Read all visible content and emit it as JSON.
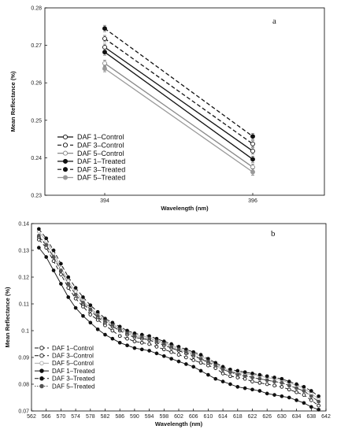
{
  "chart_data": [
    {
      "type": "line",
      "panel_label": "a",
      "xlabel": "Wavelength (nm)",
      "ylabel": "Mean Reflectance (%)",
      "x": [
        394,
        396
      ],
      "x_tick_labels": [
        "394",
        "396"
      ],
      "ylim": [
        0.23,
        0.28
      ],
      "y_tick_labels": [
        "0.23",
        "0.24",
        "0.25",
        "0.26",
        "0.27",
        "0.28"
      ],
      "grid": false,
      "legend_position": "bottom-left",
      "error_bars": true,
      "series": [
        {
          "name": "DAF 1–Control",
          "values": [
            0.2695,
            0.2418
          ],
          "line_color": "#111111",
          "line_style": "solid",
          "marker": "open-circle"
        },
        {
          "name": "DAF 3–Control",
          "values": [
            0.2718,
            0.2437
          ],
          "line_color": "#111111",
          "line_style": "dashed",
          "marker": "open-circle"
        },
        {
          "name": "DAF 5–Control",
          "values": [
            0.2652,
            0.2375
          ],
          "line_color": "#888888",
          "line_style": "solid",
          "marker": "open-circle"
        },
        {
          "name": "DAF 1–Treated",
          "values": [
            0.2682,
            0.2396
          ],
          "line_color": "#111111",
          "line_style": "solid",
          "marker": "filled-circle"
        },
        {
          "name": "DAF 3–Treated",
          "values": [
            0.2745,
            0.2457
          ],
          "line_color": "#111111",
          "line_style": "dashed",
          "marker": "filled-circle"
        },
        {
          "name": "DAF 5–Treated",
          "values": [
            0.2638,
            0.2362
          ],
          "line_color": "#999999",
          "line_style": "solid",
          "marker": "filled-circle"
        }
      ]
    },
    {
      "type": "line",
      "panel_label": "b",
      "xlabel": "Wavelength (nm)",
      "ylabel": "Mean Reflectance (%)",
      "xlim": [
        562,
        642
      ],
      "ylim": [
        0.07,
        0.14
      ],
      "x_tick_labels": [
        "562",
        "566",
        "570",
        "574",
        "578",
        "582",
        "586",
        "590",
        "594",
        "598",
        "602",
        "606",
        "610",
        "614",
        "618",
        "622",
        "626",
        "630",
        "634",
        "638",
        "642"
      ],
      "y_tick_labels": [
        "0.07",
        "0.08",
        "0.09",
        "0.1",
        "0.11",
        "0.12",
        "0.13",
        "0.14"
      ],
      "grid": false,
      "legend_position": "bottom-left",
      "x": [
        564,
        566,
        568,
        570,
        572,
        574,
        576,
        578,
        580,
        582,
        584,
        586,
        588,
        590,
        592,
        594,
        596,
        598,
        600,
        602,
        604,
        606,
        608,
        610,
        612,
        614,
        616,
        618,
        620,
        622,
        624,
        626,
        628,
        630,
        632,
        634,
        636,
        638,
        640
      ],
      "series": [
        {
          "name": "DAF 1–Control",
          "line_color": "#111111",
          "line_style": "dashed",
          "marker": "open-circle",
          "values": [
            0.134,
            0.131,
            0.126,
            0.121,
            0.116,
            0.112,
            0.109,
            0.106,
            0.104,
            0.102,
            0.1,
            0.098,
            0.097,
            0.096,
            0.0955,
            0.095,
            0.094,
            0.093,
            0.092,
            0.091,
            0.09,
            0.089,
            0.088,
            0.087,
            0.086,
            0.084,
            0.083,
            0.0825,
            0.082,
            0.081,
            0.0805,
            0.08,
            0.0795,
            0.079,
            0.078,
            0.077,
            0.076,
            0.074,
            0.072
          ]
        },
        {
          "name": "DAF 3–Control",
          "line_color": "#111111",
          "line_style": "dashed",
          "marker": "open-circle",
          "values": [
            0.135,
            0.132,
            0.1275,
            0.1225,
            0.1175,
            0.1135,
            0.11,
            0.1075,
            0.105,
            0.103,
            0.1015,
            0.1,
            0.0985,
            0.0975,
            0.097,
            0.0965,
            0.0955,
            0.0945,
            0.0935,
            0.0925,
            0.0915,
            0.0905,
            0.0895,
            0.088,
            0.087,
            0.0855,
            0.0845,
            0.084,
            0.0835,
            0.0825,
            0.082,
            0.0815,
            0.081,
            0.0805,
            0.0795,
            0.0785,
            0.0775,
            0.0755,
            0.0735
          ]
        },
        {
          "name": "DAF 5–Control",
          "line_color": "#aaaaaa",
          "line_style": "solid",
          "marker": "open-circle",
          "values": [
            0.137,
            0.1335,
            0.129,
            0.1235,
            0.1185,
            0.1145,
            0.111,
            0.1085,
            0.106,
            0.104,
            0.1025,
            0.101,
            0.0995,
            0.0985,
            0.098,
            0.0975,
            0.0965,
            0.0955,
            0.0945,
            0.0935,
            0.0925,
            0.0915,
            0.0905,
            0.089,
            0.0875,
            0.086,
            0.085,
            0.0845,
            0.084,
            0.0835,
            0.083,
            0.0825,
            0.082,
            0.0815,
            0.0805,
            0.0795,
            0.0785,
            0.0765,
            0.0745
          ]
        },
        {
          "name": "DAF 1–Treated",
          "line_color": "#111111",
          "line_style": "solid",
          "marker": "filled-circle",
          "values": [
            0.131,
            0.1275,
            0.1225,
            0.1175,
            0.1125,
            0.1085,
            0.1055,
            0.103,
            0.1005,
            0.0985,
            0.097,
            0.0955,
            0.0945,
            0.0935,
            0.093,
            0.0925,
            0.0915,
            0.0905,
            0.0895,
            0.0885,
            0.0875,
            0.0865,
            0.085,
            0.0835,
            0.082,
            0.081,
            0.08,
            0.079,
            0.0785,
            0.078,
            0.0775,
            0.0765,
            0.076,
            0.0755,
            0.075,
            0.074,
            0.073,
            0.0715,
            0.0705
          ]
        },
        {
          "name": "DAF 3–Treated",
          "line_color": "#111111",
          "line_style": "dashed",
          "marker": "filled-circle",
          "values": [
            0.138,
            0.1345,
            0.13,
            0.125,
            0.12,
            0.116,
            0.1125,
            0.1095,
            0.107,
            0.1045,
            0.103,
            0.1015,
            0.1,
            0.099,
            0.0985,
            0.098,
            0.097,
            0.096,
            0.095,
            0.094,
            0.093,
            0.092,
            0.091,
            0.0895,
            0.088,
            0.0865,
            0.0855,
            0.085,
            0.0845,
            0.084,
            0.0835,
            0.083,
            0.0825,
            0.082,
            0.081,
            0.08,
            0.079,
            0.0775,
            0.0755
          ]
        },
        {
          "name": "DAF 5–Treated",
          "line_color": "#555555",
          "line_style": "dotted",
          "marker": "filled-circle",
          "values": [
            0.1355,
            0.132,
            0.1275,
            0.1225,
            0.1175,
            0.1135,
            0.1105,
            0.108,
            0.1055,
            0.1035,
            0.102,
            0.1005,
            0.099,
            0.098,
            0.0975,
            0.097,
            0.096,
            0.095,
            0.094,
            0.093,
            0.092,
            0.091,
            0.0895,
            0.0885,
            0.087,
            0.0855,
            0.0845,
            0.0835,
            0.083,
            0.0825,
            0.082,
            0.0815,
            0.081,
            0.0805,
            0.0795,
            0.0785,
            0.0775,
            0.0755,
            0.0735
          ]
        }
      ]
    }
  ]
}
